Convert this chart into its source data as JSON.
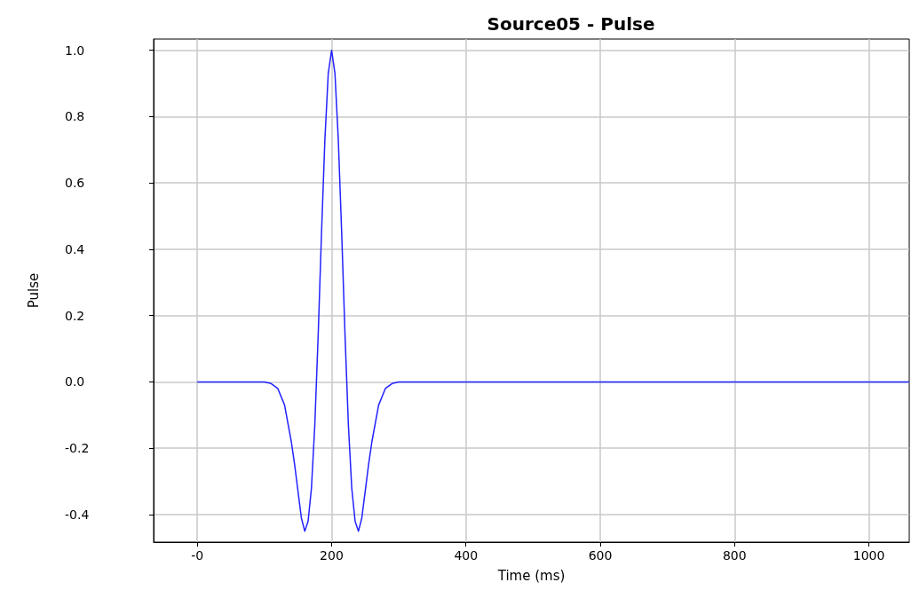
{
  "chart_data": {
    "type": "line",
    "title": "Source05 - Pulse",
    "xlabel": "Time (ms)",
    "ylabel": "Pulse",
    "x": [
      0,
      100,
      110,
      120,
      130,
      140,
      145,
      150,
      155,
      160,
      165,
      170,
      175,
      180,
      185,
      190,
      195,
      200,
      205,
      210,
      215,
      220,
      225,
      230,
      235,
      240,
      245,
      250,
      255,
      260,
      270,
      280,
      290,
      300,
      1060
    ],
    "series": [
      {
        "color": "#2222ff",
        "values": [
          0,
          0,
          -0.005,
          -0.02,
          -0.07,
          -0.18,
          -0.25,
          -0.33,
          -0.41,
          -0.45,
          -0.42,
          -0.32,
          -0.13,
          0.14,
          0.45,
          0.73,
          0.93,
          1.0,
          0.93,
          0.73,
          0.45,
          0.14,
          -0.13,
          -0.32,
          -0.42,
          -0.45,
          -0.41,
          -0.33,
          -0.25,
          -0.18,
          -0.07,
          -0.02,
          -0.005,
          0,
          0
        ]
      }
    ],
    "xlim": [
      -65,
      1060
    ],
    "ylim": [
      -0.483,
      1.034
    ],
    "xticks": [
      {
        "value": 0,
        "label": "-0"
      },
      200,
      400,
      600,
      800,
      1000
    ],
    "yticks": [
      -0.4,
      -0.2,
      {
        "value": 0,
        "label": "0.0"
      },
      0.2,
      0.4,
      0.6,
      0.8,
      {
        "value": 1,
        "label": "1.0"
      }
    ],
    "grid": true,
    "marker": "none",
    "line_style": "solid"
  }
}
